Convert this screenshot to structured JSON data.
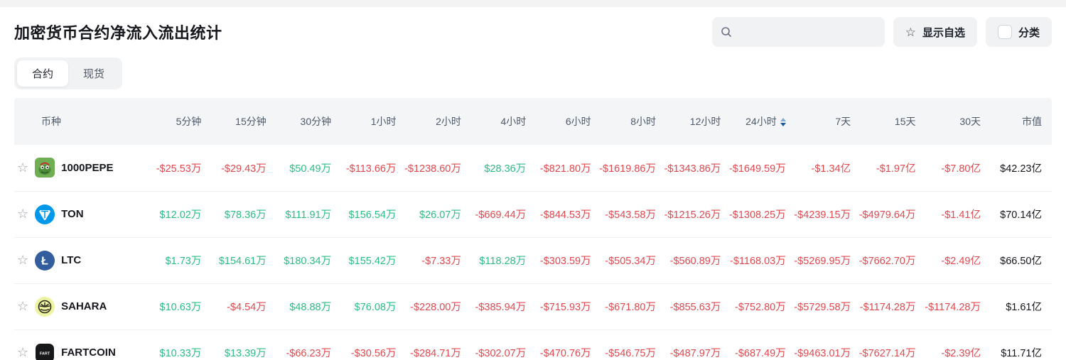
{
  "header": {
    "title": "加密货币合约净流入流出统计",
    "search": {
      "value": "",
      "placeholder": ""
    },
    "show_favorites_label": "显示自选",
    "category_label": "分类",
    "category_checked": false
  },
  "tabs": [
    {
      "id": "contract",
      "label": "合约",
      "active": true
    },
    {
      "id": "spot",
      "label": "现货",
      "active": false
    }
  ],
  "colors": {
    "positive": "#2ebd85",
    "negative": "#e2494f",
    "ton_brand": "#0098ea",
    "ltc_brand": "#345d9d",
    "pepe_brand": "#6fae53",
    "sahara_brand": "#eef3a2",
    "fartcoin_brand": "#17181a"
  },
  "table": {
    "columns": [
      "币种",
      "5分钟",
      "15分钟",
      "30分钟",
      "1小时",
      "2小时",
      "4小时",
      "6小时",
      "8小时",
      "12小时",
      "24小时",
      "7天",
      "15天",
      "30天",
      "市值"
    ],
    "sort_column_index": 10,
    "rows": [
      {
        "symbol": "1000PEPE",
        "icon": "pepe-frog",
        "values": [
          "-$25.53万",
          "-$29.43万",
          "$50.49万",
          "-$113.66万",
          "-$1238.60万",
          "$28.36万",
          "-$821.80万",
          "-$1619.86万",
          "-$1343.86万",
          "-$1649.59万",
          "-$1.34亿",
          "-$1.97亿",
          "-$7.80亿"
        ],
        "market_cap": "$42.23亿"
      },
      {
        "symbol": "TON",
        "icon": "ton-logo",
        "values": [
          "$12.02万",
          "$78.36万",
          "$111.91万",
          "$156.54万",
          "$26.07万",
          "-$669.44万",
          "-$844.53万",
          "-$543.58万",
          "-$1215.26万",
          "-$1308.25万",
          "-$4239.15万",
          "-$4979.64万",
          "-$1.41亿"
        ],
        "market_cap": "$70.14亿"
      },
      {
        "symbol": "LTC",
        "icon": "ltc-logo",
        "values": [
          "$1.73万",
          "$154.61万",
          "$180.34万",
          "$155.42万",
          "-$7.33万",
          "$118.28万",
          "-$303.59万",
          "-$505.34万",
          "-$560.89万",
          "-$1168.03万",
          "-$5269.95万",
          "-$7662.70万",
          "-$2.49亿"
        ],
        "market_cap": "$66.50亿"
      },
      {
        "symbol": "SAHARA",
        "icon": "sahara-sun",
        "values": [
          "$10.63万",
          "-$4.54万",
          "$48.88万",
          "$76.08万",
          "-$228.00万",
          "-$385.94万",
          "-$715.93万",
          "-$671.80万",
          "-$855.63万",
          "-$752.80万",
          "-$5729.58万",
          "-$1174.28万",
          "-$1174.28万"
        ],
        "market_cap": "$1.61亿"
      },
      {
        "symbol": "FARTCOIN",
        "icon": "fartcoin-logo",
        "values": [
          "$10.33万",
          "$13.39万",
          "-$66.23万",
          "-$30.56万",
          "-$284.71万",
          "-$302.07万",
          "-$470.76万",
          "-$546.75万",
          "-$487.97万",
          "-$687.49万",
          "-$9463.01万",
          "-$7627.14万",
          "-$2.39亿"
        ],
        "market_cap": "$11.71亿"
      }
    ]
  }
}
